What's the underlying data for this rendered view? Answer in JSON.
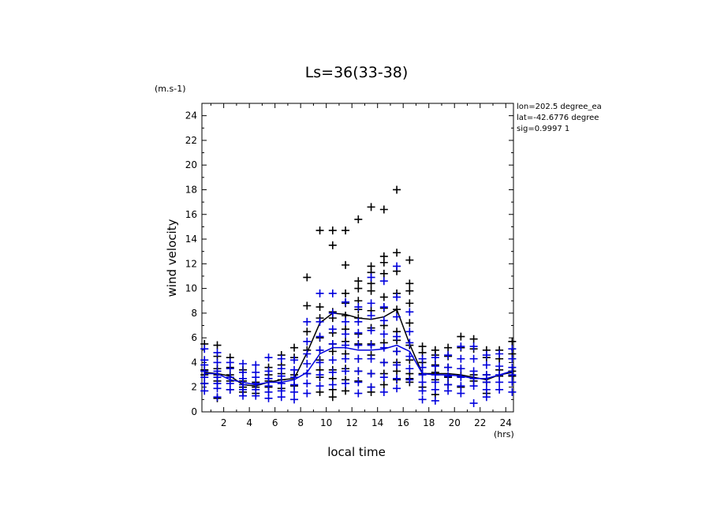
{
  "colors": {
    "black_series": "#000000",
    "blue_series": "#0000dd",
    "background": "#ffffff"
  },
  "info_lines": [
    "lon=202.5 degree_ea",
    "lat=-42.6776 degree",
    "sig=0.9997 1"
  ],
  "chart_data": {
    "type": "scatter",
    "title": "Ls=36(33-38)",
    "xlabel": "local time",
    "ylabel": "wind velocity",
    "x_unit": "(hrs)",
    "y_unit": "(m.s-1)",
    "xlim": [
      0.3,
      24.6
    ],
    "ylim": [
      0,
      25
    ],
    "xticks": [
      2,
      4,
      6,
      8,
      10,
      12,
      14,
      16,
      18,
      20,
      22,
      24
    ],
    "yticks": [
      0,
      2,
      4,
      6,
      8,
      10,
      12,
      14,
      16,
      18,
      20,
      22,
      24
    ],
    "grid": false,
    "x": [
      0.5,
      1.5,
      2.5,
      3.5,
      4.5,
      5.5,
      6.5,
      7.5,
      8.5,
      9.5,
      10.5,
      11.5,
      12.5,
      13.5,
      14.5,
      15.5,
      16.5,
      17.5,
      18.5,
      19.5,
      20.5,
      21.5,
      22.5,
      23.5,
      24.5
    ],
    "series": [
      {
        "color": "#000000",
        "mean": [
          3.2,
          3.1,
          2.9,
          2.2,
          2.1,
          2.4,
          2.6,
          2.7,
          4.8,
          7.2,
          8.0,
          7.9,
          7.6,
          7.5,
          7.7,
          8.3,
          5.5,
          3.1,
          3.1,
          3.1,
          3.0,
          2.8,
          2.6,
          3.0,
          3.2
        ],
        "samples": [
          [
            5.5,
            3.4,
            3.0,
            2.3
          ],
          [
            5.4,
            4.5,
            3.5,
            3.0,
            2.5,
            1.1
          ],
          [
            4.4,
            3.6,
            3.0,
            2.5,
            1.8
          ],
          [
            3.4,
            2.5,
            2.0,
            1.6
          ],
          [
            2.4,
            2.0,
            1.5
          ],
          [
            3.6,
            3.0,
            2.5,
            2.0
          ],
          [
            4.6,
            3.8,
            3.1,
            2.6,
            1.9
          ],
          [
            5.2,
            4.4,
            3.0,
            2.1
          ],
          [
            10.9,
            8.6,
            6.5,
            5.0,
            3.1
          ],
          [
            14.7,
            8.5,
            7.6,
            6.0,
            5.0,
            4.2,
            3.4,
            2.8,
            1.6
          ],
          [
            14.7,
            13.5,
            8.1,
            7.6,
            6.4,
            5.5,
            4.9,
            3.4,
            2.7,
            1.8,
            1.2
          ],
          [
            14.7,
            11.9,
            9.6,
            8.8,
            7.8,
            6.7,
            5.7,
            4.7,
            3.5,
            2.6,
            1.7
          ],
          [
            15.6,
            10.6,
            10.0,
            9.0,
            8.3,
            7.6,
            6.3,
            5.5,
            4.3,
            3.3,
            2.5
          ],
          [
            16.6,
            11.8,
            11.3,
            10.4,
            9.8,
            8.2,
            6.8,
            5.5,
            4.6,
            3.1,
            2.0,
            1.6
          ],
          [
            16.4,
            12.6,
            12.1,
            11.2,
            9.3,
            8.4,
            7.0,
            5.6,
            4.0,
            3.1,
            2.2
          ],
          [
            18.0,
            12.9,
            11.4,
            9.6,
            8.3,
            6.5,
            5.8,
            4.9,
            4.0,
            3.3,
            2.6
          ],
          [
            12.3,
            10.4,
            9.8,
            8.8,
            7.2,
            5.4,
            4.2,
            3.1,
            2.7,
            2.4
          ],
          [
            5.3,
            4.8,
            4.0,
            3.1,
            2.0
          ],
          [
            5.0,
            4.6,
            3.8,
            3.2,
            2.6,
            1.4
          ],
          [
            5.2,
            4.5,
            3.6,
            2.8,
            2.2
          ],
          [
            6.1,
            5.2,
            3.5,
            2.9,
            2.0
          ],
          [
            5.9,
            5.1,
            3.0,
            2.5
          ],
          [
            5.0,
            4.4,
            3.0,
            2.4,
            1.5
          ],
          [
            5.0,
            4.3,
            3.4,
            2.9
          ],
          [
            5.7,
            4.7,
            3.3,
            2.9
          ]
        ]
      },
      {
        "color": "#0000dd",
        "mean": [
          3.1,
          3.1,
          2.6,
          2.4,
          2.2,
          2.4,
          2.4,
          2.6,
          3.2,
          4.7,
          5.2,
          5.2,
          5.0,
          5.0,
          5.1,
          5.4,
          4.9,
          3.1,
          3.0,
          3.0,
          2.9,
          2.7,
          2.7,
          3.0,
          3.3
        ],
        "samples": [
          [
            5.1,
            4.2,
            3.8,
            3.3,
            2.8,
            2.3,
            1.7
          ],
          [
            4.8,
            4.0,
            3.3,
            2.8,
            2.3,
            1.9,
            1.2
          ],
          [
            4.0,
            3.5,
            2.8,
            2.3,
            1.8
          ],
          [
            3.9,
            3.2,
            2.7,
            2.2,
            1.8,
            1.3
          ],
          [
            3.8,
            3.2,
            2.8,
            2.3,
            1.8,
            1.3
          ],
          [
            4.4,
            3.3,
            2.7,
            2.1,
            1.6,
            1.1
          ],
          [
            4.3,
            3.5,
            2.9,
            2.3,
            1.7,
            1.2
          ],
          [
            4.2,
            3.4,
            2.8,
            2.2,
            1.6,
            1.0
          ],
          [
            7.3,
            5.7,
            4.7,
            3.9,
            3.1,
            2.3,
            1.5
          ],
          [
            9.6,
            7.3,
            6.1,
            5.0,
            4.0,
            3.0,
            2.1
          ],
          [
            9.6,
            8.0,
            6.7,
            5.5,
            4.2,
            3.2,
            2.2
          ],
          [
            8.9,
            7.3,
            6.3,
            5.4,
            4.3,
            3.3,
            2.3
          ],
          [
            8.5,
            7.3,
            6.4,
            5.4,
            4.3,
            3.3,
            2.4,
            1.5
          ],
          [
            10.9,
            8.8,
            7.8,
            6.6,
            5.4,
            4.3,
            3.1,
            2.0
          ],
          [
            10.6,
            8.5,
            7.4,
            6.3,
            5.2,
            4.0,
            2.8,
            1.6
          ],
          [
            11.8,
            9.3,
            7.7,
            6.1,
            4.9,
            3.8,
            2.7,
            1.9
          ],
          [
            8.1,
            6.5,
            5.6,
            4.5,
            3.5,
            2.6
          ],
          [
            4.3,
            3.6,
            3.0,
            2.4,
            1.7,
            1.0
          ],
          [
            4.4,
            3.7,
            3.0,
            2.4,
            1.8,
            0.9
          ],
          [
            4.6,
            3.6,
            2.9,
            2.2,
            1.7
          ],
          [
            5.3,
            4.3,
            3.5,
            2.8,
            2.1,
            1.5
          ],
          [
            5.3,
            4.3,
            3.3,
            2.7,
            2.1,
            0.7
          ],
          [
            4.6,
            3.8,
            3.0,
            2.4,
            1.8,
            1.2
          ],
          [
            4.7,
            3.7,
            3.0,
            2.4,
            1.8
          ],
          [
            5.1,
            4.3,
            3.6,
            3.0,
            2.4,
            1.6
          ]
        ]
      }
    ]
  }
}
